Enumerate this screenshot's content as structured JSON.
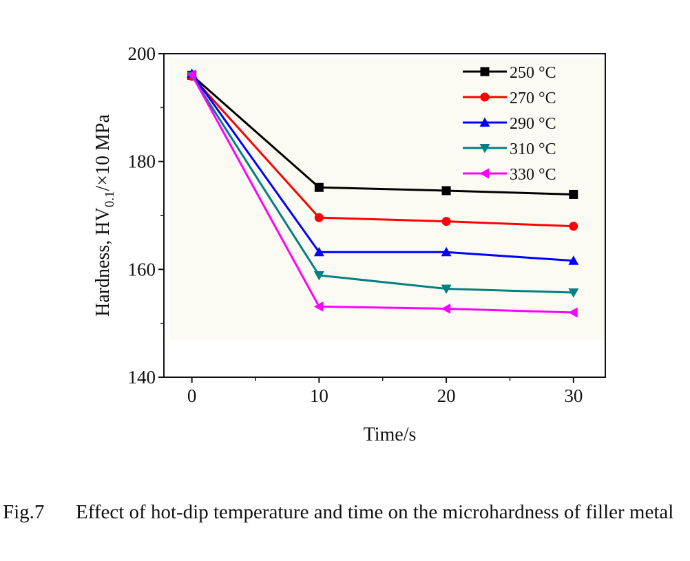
{
  "chart_data": {
    "type": "line",
    "x": [
      0,
      10,
      20,
      30
    ],
    "xlabel": "Time/s",
    "ylabel_main": "Hardness, HV",
    "ylabel_sub": "0.1",
    "ylabel_rest": "/×10 MPa",
    "xlim": [
      -2.2,
      32.5
    ],
    "ylim": [
      140,
      200
    ],
    "xticks": [
      "0",
      "10",
      "20",
      "30"
    ],
    "yticks": [
      "140",
      "160",
      "180",
      "200"
    ],
    "grid": false,
    "legend_position": "top-right",
    "series": [
      {
        "name": "250 °C",
        "values": [
          196.0,
          175.2,
          174.6,
          173.9
        ],
        "color": "#000000",
        "marker": "square"
      },
      {
        "name": "270 °C",
        "values": [
          195.8,
          169.6,
          168.9,
          168.0
        ],
        "color": "#ff0000",
        "marker": "circle"
      },
      {
        "name": "290 °C",
        "values": [
          196.3,
          163.2,
          163.2,
          161.6
        ],
        "color": "#0000ff",
        "marker": "triangle-up"
      },
      {
        "name": "310 °C",
        "values": [
          195.9,
          158.9,
          156.4,
          155.7
        ],
        "color": "#008080",
        "marker": "triangle-down"
      },
      {
        "name": "330 °C",
        "values": [
          196.1,
          153.1,
          152.7,
          152.0
        ],
        "color": "#ff00ff",
        "marker": "triangle-left"
      }
    ]
  },
  "caption": {
    "label": "Fig.7",
    "text": "Effect of hot-dip temperature and time on the microhardness of filler metal"
  }
}
